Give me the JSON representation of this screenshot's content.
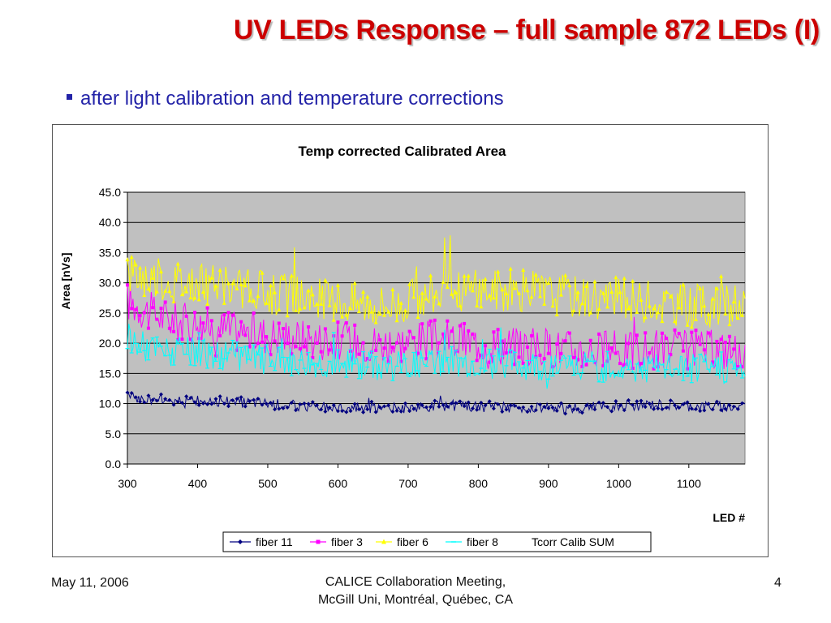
{
  "slide": {
    "title": "UV LEDs Response – full sample 872 LEDs (I)",
    "bullet": "after light calibration and temperature corrections",
    "footer_left": "May 11, 2006",
    "footer_center_line1": "CALICE Collaboration Meeting,",
    "footer_center_line2": "McGill Uni,  Montréal, Québec, CA",
    "page_number": "4"
  },
  "chart_data": {
    "type": "line",
    "title": "Temp corrected Calibrated Area",
    "xlabel": "LED #",
    "ylabel": "Area [nVs]",
    "xlim": [
      300,
      1180
    ],
    "ylim": [
      0,
      45
    ],
    "x_ticks": [
      300,
      400,
      500,
      600,
      700,
      800,
      900,
      1000,
      1100
    ],
    "y_ticks": [
      0,
      5,
      10,
      15,
      20,
      25,
      30,
      35,
      40,
      45
    ],
    "y_tick_labels": [
      "0.0",
      "5.0",
      "10.0",
      "15.0",
      "20.0",
      "25.0",
      "30.0",
      "35.0",
      "40.0",
      "45.0"
    ],
    "grid": "horizontal",
    "plot_background": "#c0c0c0",
    "legend_position": "bottom",
    "series": [
      {
        "name": "fiber 11",
        "color": "#000080",
        "marker": "diamond",
        "values": [
          11.2,
          10.9,
          10.8,
          10.7,
          10.6,
          10.5,
          10.4,
          10.3,
          10.2,
          10.1,
          10.0,
          9.8,
          9.7,
          9.6,
          9.5,
          9.4,
          9.4,
          9.3,
          9.2,
          9.2,
          9.3,
          9.5,
          9.6,
          9.7,
          9.6,
          9.5,
          9.4,
          9.4,
          9.3,
          9.3,
          9.2,
          9.2,
          9.3,
          9.4,
          9.5,
          9.6,
          9.7,
          9.8,
          9.8,
          9.7,
          9.6,
          9.5,
          9.5,
          9.4,
          9.4
        ]
      },
      {
        "name": "fiber 3",
        "color": "#ff00ff",
        "marker": "square",
        "values": [
          27.0,
          25.8,
          24.8,
          24.0,
          23.5,
          23.0,
          22.6,
          22.3,
          22.0,
          21.7,
          21.5,
          21.2,
          21.0,
          20.8,
          20.6,
          20.4,
          20.3,
          20.2,
          20.1,
          20.0,
          20.3,
          20.5,
          20.6,
          20.5,
          20.3,
          20.1,
          19.9,
          19.7,
          19.5,
          19.4,
          19.3,
          19.2,
          19.0,
          18.9,
          18.8,
          18.7,
          18.8,
          18.9,
          18.9,
          19.0,
          19.0,
          19.0,
          18.9,
          18.8,
          18.8
        ]
      },
      {
        "name": "fiber 6",
        "color": "#ffff00",
        "marker": "triangle",
        "values": [
          32.0,
          31.2,
          30.8,
          30.5,
          30.2,
          29.9,
          29.6,
          29.3,
          29.0,
          28.7,
          28.4,
          28.1,
          27.8,
          27.5,
          27.3,
          27.0,
          26.8,
          26.6,
          26.4,
          26.5,
          27.0,
          27.6,
          28.2,
          28.6,
          28.8,
          28.9,
          29.0,
          28.9,
          28.7,
          28.5,
          28.3,
          28.1,
          27.9,
          27.7,
          27.5,
          27.3,
          27.1,
          26.9,
          26.7,
          26.5,
          26.3,
          26.2,
          26.1,
          26.0,
          26.0
        ]
      },
      {
        "name": "fiber 8",
        "color": "#00ffff",
        "marker": "dash",
        "values": [
          21.0,
          19.8,
          19.0,
          18.6,
          18.4,
          18.3,
          18.1,
          18.0,
          17.8,
          17.6,
          17.4,
          17.2,
          17.0,
          16.9,
          16.8,
          16.7,
          16.6,
          16.5,
          16.4,
          16.4,
          16.6,
          16.8,
          17.0,
          17.0,
          16.9,
          16.8,
          16.7,
          16.6,
          16.5,
          16.4,
          16.3,
          16.2,
          16.2,
          16.1,
          16.1,
          16.0,
          16.0,
          16.0,
          16.0,
          16.0,
          16.0,
          16.0,
          16.0,
          15.9,
          15.9
        ]
      },
      {
        "name": "Tcorr Calib SUM",
        "color": "#000000",
        "marker": "none",
        "values": []
      }
    ]
  }
}
